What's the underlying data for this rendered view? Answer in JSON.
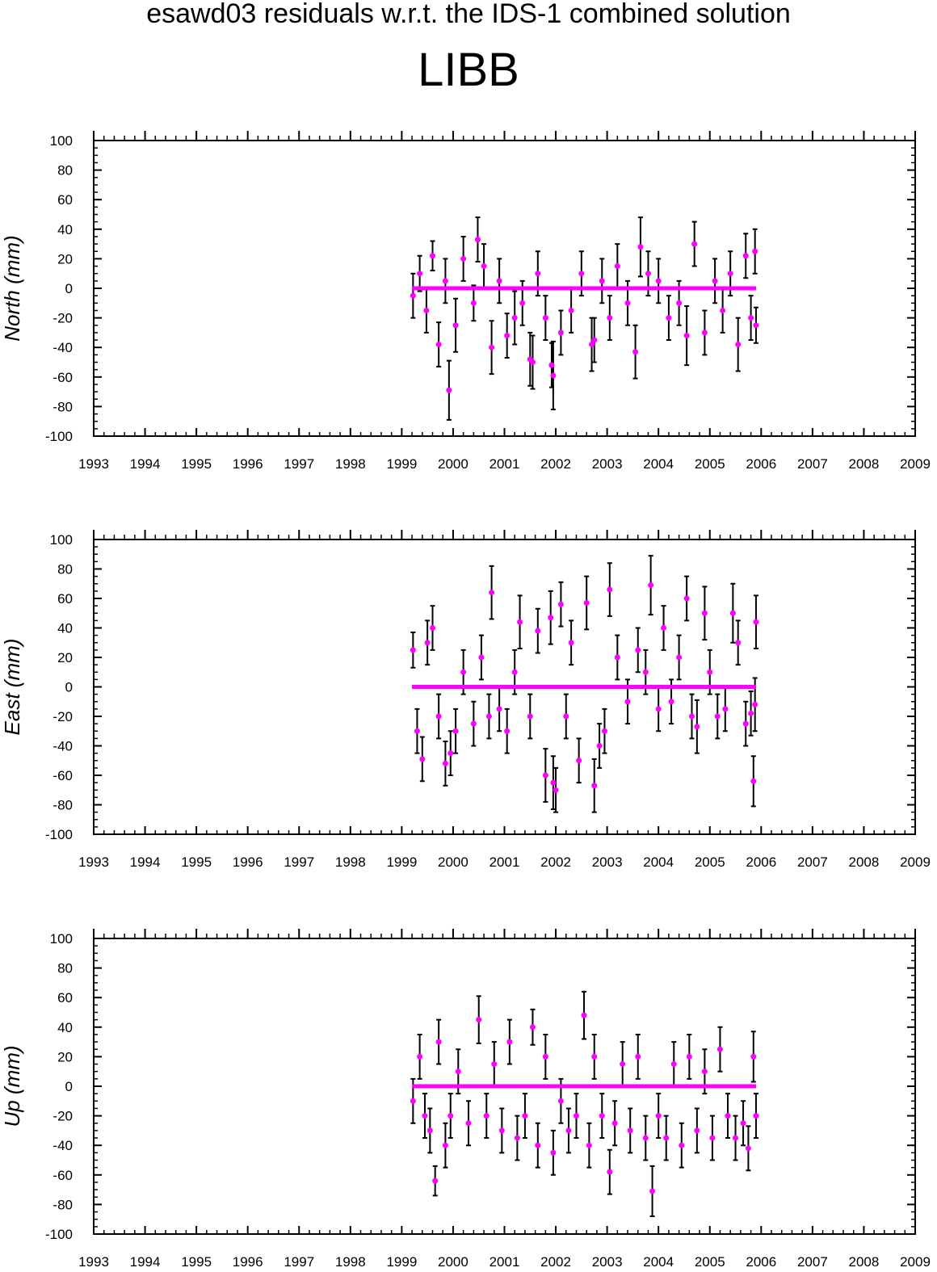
{
  "header": {
    "title": "esawd03 residuals w.r.t. the IDS-1 combined solution",
    "station": "LIBB"
  },
  "colors": {
    "point": "#ff00ff",
    "errorbar": "#000000",
    "axis": "#000000"
  },
  "chart_data": [
    {
      "type": "scatter",
      "ylabel": "North (mm)",
      "xlim": [
        1993,
        2009
      ],
      "ylim": [
        -100,
        100
      ],
      "xticks": [
        "1993",
        "1994",
        "1995",
        "1996",
        "1997",
        "1998",
        "1999",
        "2000",
        "2001",
        "2002",
        "2003",
        "2004",
        "2005",
        "2006",
        "2007",
        "2008",
        "2009"
      ],
      "yticks": [
        "100",
        "80",
        "60",
        "40",
        "20",
        "0",
        "-20",
        "-40",
        "-60",
        "-80",
        "-100"
      ],
      "zero_line": [
        1999.2,
        2005.9
      ],
      "series": [
        {
          "x": [
            1999.22,
            1999.35,
            1999.48,
            1999.6,
            1999.72,
            1999.85,
            1999.92,
            2000.05,
            2000.2,
            2000.4,
            2000.48,
            2000.6,
            2000.75,
            2000.9,
            2001.05,
            2001.2,
            2001.35,
            2001.5,
            2001.55,
            2001.65,
            2001.8,
            2001.92,
            2001.95,
            2002.1,
            2002.3,
            2002.5,
            2002.7,
            2002.75,
            2002.9,
            2003.05,
            2003.2,
            2003.4,
            2003.55,
            2003.65,
            2003.8,
            2004.0,
            2004.2,
            2004.4,
            2004.55,
            2004.7,
            2004.9,
            2005.1,
            2005.25,
            2005.4,
            2005.55,
            2005.7,
            2005.8,
            2005.88,
            2005.9
          ],
          "y": [
            -5,
            10,
            -15,
            22,
            -38,
            5,
            -69,
            -25,
            20,
            -10,
            33,
            15,
            -40,
            5,
            -32,
            -20,
            -10,
            -48,
            -50,
            10,
            -20,
            -52,
            -59,
            -30,
            -15,
            10,
            -38,
            -35,
            5,
            -20,
            15,
            -10,
            -43,
            28,
            10,
            5,
            -20,
            -10,
            -32,
            30,
            -30,
            5,
            -15,
            10,
            -38,
            22,
            -20,
            25,
            -25
          ],
          "error": [
            15,
            12,
            15,
            10,
            15,
            15,
            20,
            18,
            15,
            12,
            15,
            15,
            18,
            15,
            15,
            18,
            15,
            18,
            18,
            15,
            15,
            15,
            23,
            15,
            15,
            15,
            18,
            15,
            15,
            15,
            15,
            15,
            18,
            20,
            15,
            15,
            15,
            15,
            20,
            15,
            15,
            15,
            15,
            15,
            18,
            15,
            15,
            15,
            12
          ]
        }
      ]
    },
    {
      "type": "scatter",
      "ylabel": "East (mm)",
      "xlim": [
        1993,
        2009
      ],
      "ylim": [
        -100,
        100
      ],
      "xticks": [
        "1993",
        "1994",
        "1995",
        "1996",
        "1997",
        "1998",
        "1999",
        "2000",
        "2001",
        "2002",
        "2003",
        "2004",
        "2005",
        "2006",
        "2007",
        "2008",
        "2009"
      ],
      "yticks": [
        "100",
        "80",
        "60",
        "40",
        "20",
        "0",
        "-20",
        "-40",
        "-60",
        "-80",
        "-100"
      ],
      "zero_line": [
        1999.2,
        2005.9
      ],
      "series": [
        {
          "x": [
            1999.22,
            1999.3,
            1999.4,
            1999.5,
            1999.6,
            1999.72,
            1999.85,
            1999.95,
            2000.05,
            2000.2,
            2000.4,
            2000.55,
            2000.7,
            2000.75,
            2000.9,
            2001.05,
            2001.2,
            2001.3,
            2001.5,
            2001.65,
            2001.8,
            2001.9,
            2001.95,
            2002.0,
            2002.1,
            2002.2,
            2002.3,
            2002.45,
            2002.6,
            2002.75,
            2002.85,
            2002.95,
            2003.05,
            2003.2,
            2003.4,
            2003.6,
            2003.75,
            2003.85,
            2004.0,
            2004.1,
            2004.25,
            2004.4,
            2004.55,
            2004.65,
            2004.75,
            2004.9,
            2005.0,
            2005.15,
            2005.3,
            2005.45,
            2005.55,
            2005.7,
            2005.8,
            2005.85,
            2005.88,
            2005.9
          ],
          "y": [
            25,
            -30,
            -49,
            30,
            40,
            -20,
            -52,
            -45,
            -30,
            10,
            -25,
            20,
            -20,
            64,
            -15,
            -30,
            10,
            44,
            -20,
            38,
            -60,
            47,
            -65,
            -70,
            56,
            -20,
            30,
            -50,
            57,
            -67,
            -40,
            -30,
            66,
            20,
            -10,
            25,
            10,
            69,
            -15,
            40,
            -10,
            20,
            60,
            -20,
            -27,
            50,
            10,
            -20,
            -15,
            50,
            30,
            -25,
            -18,
            -64,
            -12,
            44
          ],
          "error": [
            12,
            15,
            15,
            15,
            15,
            15,
            15,
            15,
            15,
            15,
            15,
            15,
            15,
            18,
            15,
            15,
            15,
            18,
            15,
            15,
            18,
            18,
            18,
            15,
            15,
            15,
            15,
            15,
            18,
            18,
            15,
            15,
            18,
            15,
            15,
            15,
            15,
            20,
            15,
            15,
            15,
            15,
            15,
            15,
            18,
            18,
            15,
            15,
            15,
            20,
            15,
            15,
            15,
            17,
            18,
            18
          ]
        }
      ]
    },
    {
      "type": "scatter",
      "ylabel": "Up (mm)",
      "xlim": [
        1993,
        2009
      ],
      "ylim": [
        -100,
        100
      ],
      "xticks": [
        "1993",
        "1994",
        "1995",
        "1996",
        "1997",
        "1998",
        "1999",
        "2000",
        "2001",
        "2002",
        "2003",
        "2004",
        "2005",
        "2006",
        "2007",
        "2008",
        "2009"
      ],
      "yticks": [
        "100",
        "80",
        "60",
        "40",
        "20",
        "0",
        "-20",
        "-40",
        "-60",
        "-80",
        "-100"
      ],
      "zero_line": [
        1999.2,
        2005.9
      ],
      "series": [
        {
          "x": [
            1999.22,
            1999.35,
            1999.45,
            1999.55,
            1999.65,
            1999.72,
            1999.85,
            1999.95,
            2000.1,
            2000.3,
            2000.5,
            2000.65,
            2000.8,
            2000.95,
            2001.1,
            2001.25,
            2001.4,
            2001.55,
            2001.65,
            2001.8,
            2001.95,
            2002.1,
            2002.25,
            2002.4,
            2002.55,
            2002.65,
            2002.75,
            2002.9,
            2003.05,
            2003.15,
            2003.3,
            2003.45,
            2003.6,
            2003.75,
            2003.88,
            2004.0,
            2004.15,
            2004.3,
            2004.45,
            2004.6,
            2004.75,
            2004.9,
            2005.05,
            2005.2,
            2005.35,
            2005.5,
            2005.65,
            2005.75,
            2005.85,
            2005.9
          ],
          "y": [
            -10,
            20,
            -20,
            -30,
            -64,
            30,
            -40,
            -20,
            10,
            -25,
            45,
            -20,
            15,
            -30,
            30,
            -35,
            -20,
            40,
            -40,
            20,
            -45,
            -10,
            -30,
            -20,
            48,
            -40,
            20,
            -20,
            -58,
            -25,
            15,
            -30,
            20,
            -35,
            -71,
            -20,
            -35,
            15,
            -40,
            20,
            -30,
            10,
            -35,
            25,
            -20,
            -35,
            -25,
            -42,
            20,
            -20
          ],
          "error": [
            15,
            15,
            15,
            15,
            10,
            15,
            15,
            15,
            15,
            15,
            16,
            15,
            15,
            15,
            15,
            15,
            15,
            12,
            15,
            15,
            15,
            15,
            15,
            15,
            16,
            15,
            15,
            15,
            15,
            15,
            15,
            15,
            15,
            15,
            17,
            15,
            15,
            15,
            15,
            15,
            15,
            15,
            15,
            15,
            15,
            15,
            15,
            15,
            17,
            15
          ]
        }
      ]
    }
  ]
}
